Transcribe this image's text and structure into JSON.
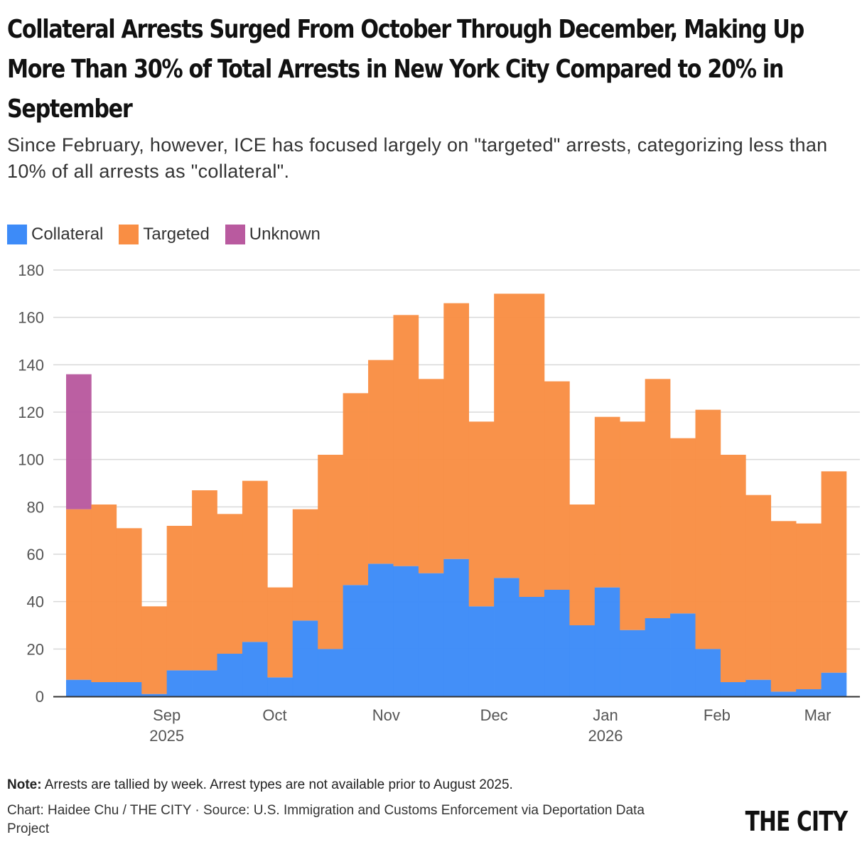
{
  "title": "Collateral Arrests Surged From October Through December, Making Up More Than 30% of Total Arrests in New York City Compared to 20% in September",
  "subtitle": "Since February, however, ICE has focused largely on \"targeted\" arrests, categorizing less than 10% of all arrests as \"collateral\".",
  "note_label": "Note:",
  "note_text": " Arrests are tallied by week. Arrest types are not available prior to August 2025.",
  "credit": "Chart: Haidee Chu / THE CITY · Source: U.S. Immigration and Customs Enforcement via Deportation Data Project",
  "logo": "THE CITY",
  "chart_data": {
    "type": "bar",
    "stacked": true,
    "title": "",
    "xlabel": "",
    "ylabel": "",
    "ylim": [
      0,
      180
    ],
    "yticks": [
      0,
      20,
      40,
      60,
      80,
      100,
      120,
      140,
      160,
      180
    ],
    "grid": true,
    "legend_position": "top-left",
    "xticks": [
      {
        "date": "2025-09-01",
        "label": "Sep",
        "year": "2025"
      },
      {
        "date": "2025-10-01",
        "label": "Oct",
        "year": ""
      },
      {
        "date": "2025-11-01",
        "label": "Nov",
        "year": ""
      },
      {
        "date": "2025-12-01",
        "label": "Dec",
        "year": ""
      },
      {
        "date": "2026-01-01",
        "label": "Jan",
        "year": "2026"
      },
      {
        "date": "2026-02-01",
        "label": "Feb",
        "year": ""
      },
      {
        "date": "2026-03-01",
        "label": "Mar",
        "year": ""
      }
    ],
    "x": [
      "2025-08-04",
      "2025-08-11",
      "2025-08-18",
      "2025-08-25",
      "2025-09-01",
      "2025-09-08",
      "2025-09-15",
      "2025-09-22",
      "2025-09-29",
      "2025-10-06",
      "2025-10-13",
      "2025-10-20",
      "2025-10-27",
      "2025-11-03",
      "2025-11-10",
      "2025-11-17",
      "2025-11-24",
      "2025-12-01",
      "2025-12-08",
      "2025-12-15",
      "2025-12-22",
      "2025-12-29",
      "2026-01-05",
      "2026-01-12",
      "2026-01-19",
      "2026-01-26",
      "2026-02-02",
      "2026-02-09",
      "2026-02-16",
      "2026-02-23",
      "2026-03-02"
    ],
    "series": [
      {
        "name": "Collateral",
        "color": "#3d8bf8",
        "values": [
          7,
          6,
          6,
          1,
          11,
          11,
          18,
          23,
          8,
          32,
          20,
          47,
          56,
          55,
          52,
          58,
          38,
          50,
          42,
          45,
          30,
          46,
          28,
          33,
          35,
          20,
          6,
          7,
          2,
          3,
          10
        ]
      },
      {
        "name": "Targeted",
        "color": "#f98e44",
        "values": [
          72,
          75,
          65,
          37,
          61,
          76,
          59,
          68,
          38,
          47,
          82,
          81,
          86,
          106,
          82,
          108,
          78,
          120,
          128,
          88,
          51,
          72,
          88,
          101,
          74,
          101,
          96,
          78,
          72,
          70,
          85
        ]
      },
      {
        "name": "Unknown",
        "color": "#b95a9f",
        "values": [
          57,
          0,
          0,
          0,
          0,
          0,
          0,
          0,
          0,
          0,
          0,
          0,
          0,
          0,
          0,
          0,
          0,
          0,
          0,
          0,
          0,
          0,
          0,
          0,
          0,
          0,
          0,
          0,
          0,
          0,
          0
        ]
      }
    ]
  }
}
